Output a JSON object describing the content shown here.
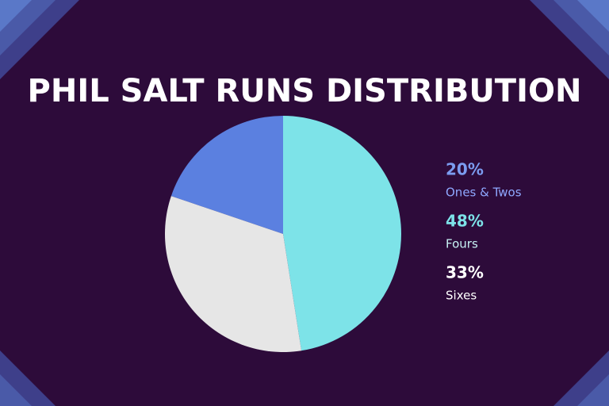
{
  "chart_data": {
    "type": "pie",
    "title": "PHIL SALT RUNS DISTRIBUTION",
    "categories": [
      "Ones & Twos",
      "Fours",
      "Sixes"
    ],
    "values": [
      20,
      48,
      33
    ],
    "value_labels": [
      "20%",
      "48%",
      "33%"
    ],
    "colors": [
      "#5b80e0",
      "#7de3e8",
      "#e6e6e6"
    ]
  }
}
